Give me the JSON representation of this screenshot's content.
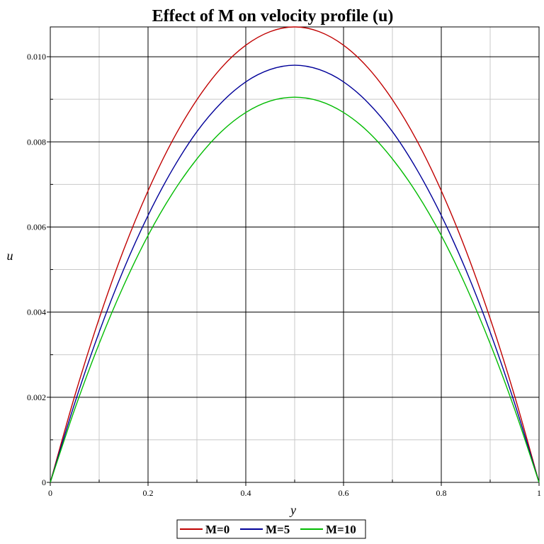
{
  "chart_data": {
    "type": "line",
    "title": "Effect of M on velocity profile (u)",
    "xlabel": "y",
    "ylabel": "u",
    "xlim": [
      0,
      1
    ],
    "ylim": [
      0,
      0.0107
    ],
    "x_ticks": [
      {
        "value": 0,
        "label": "0"
      },
      {
        "value": 0.2,
        "label": "0.2"
      },
      {
        "value": 0.4,
        "label": "0.4"
      },
      {
        "value": 0.6,
        "label": "0.6"
      },
      {
        "value": 0.8,
        "label": "0.8"
      },
      {
        "value": 1,
        "label": "1"
      }
    ],
    "y_ticks": [
      {
        "value": 0,
        "label": "0"
      },
      {
        "value": 0.002,
        "label": "0.002"
      },
      {
        "value": 0.004,
        "label": "0.004"
      },
      {
        "value": 0.006,
        "label": "0.006"
      },
      {
        "value": 0.008,
        "label": "0.008"
      },
      {
        "value": 0.01,
        "label": "0.010"
      }
    ],
    "x_minor_ticks": [
      0.1,
      0.3,
      0.5,
      0.7,
      0.9
    ],
    "y_minor_ticks": [
      0.001,
      0.003,
      0.005,
      0.007,
      0.009
    ],
    "grid": true,
    "legend_position": "bottom-center",
    "x": [
      0,
      0.05,
      0.1,
      0.15,
      0.2,
      0.25,
      0.3,
      0.35,
      0.4,
      0.45,
      0.5,
      0.55,
      0.6,
      0.65,
      0.7,
      0.75,
      0.8,
      0.85,
      0.9,
      0.95,
      1
    ],
    "series": [
      {
        "name": "M=0",
        "color": "#c00000",
        "values": [
          0,
          0.00203,
          0.00385,
          0.00546,
          0.00685,
          0.00803,
          0.00899,
          0.00974,
          0.01027,
          0.01059,
          0.0107,
          0.01059,
          0.01027,
          0.00974,
          0.00899,
          0.00803,
          0.00685,
          0.00546,
          0.00385,
          0.00203,
          0
        ]
      },
      {
        "name": "M=5",
        "color": "#000099",
        "values": [
          0,
          0.00186,
          0.00353,
          0.005,
          0.00627,
          0.00735,
          0.00824,
          0.00892,
          0.00941,
          0.0097,
          0.0098,
          0.0097,
          0.00941,
          0.00892,
          0.00824,
          0.00735,
          0.00627,
          0.005,
          0.00353,
          0.00186,
          0
        ]
      },
      {
        "name": "M=10",
        "color": "#00bb00",
        "values": [
          0,
          0.00172,
          0.00326,
          0.00462,
          0.0058,
          0.00679,
          0.0076,
          0.00824,
          0.00869,
          0.00896,
          0.00905,
          0.00896,
          0.00869,
          0.00824,
          0.0076,
          0.00679,
          0.0058,
          0.00462,
          0.00326,
          0.00172,
          0
        ]
      }
    ]
  }
}
